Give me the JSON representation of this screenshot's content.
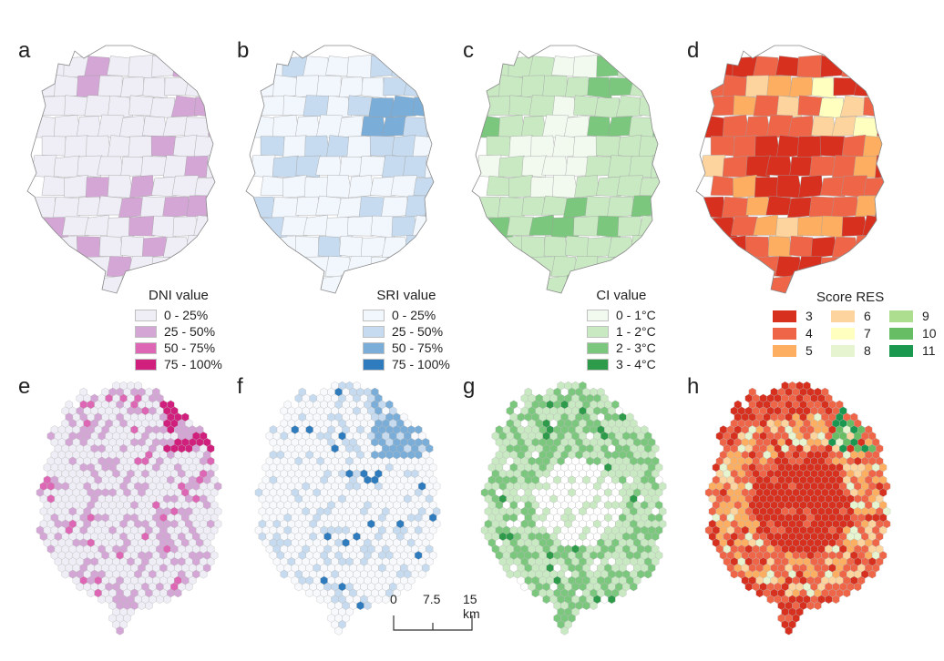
{
  "panels": {
    "a": {
      "label": "a",
      "theme": "dni"
    },
    "b": {
      "label": "b",
      "theme": "sri"
    },
    "c": {
      "label": "c",
      "theme": "ci"
    },
    "d": {
      "label": "d",
      "theme": "res"
    },
    "e": {
      "label": "e",
      "theme": "dni"
    },
    "f": {
      "label": "f",
      "theme": "sri"
    },
    "g": {
      "label": "g",
      "theme": "ci"
    },
    "h": {
      "label": "h",
      "theme": "res"
    }
  },
  "legends": {
    "dni": {
      "title": "DNI value",
      "items": [
        "0 - 25%",
        "25 - 50%",
        "50 - 75%",
        "75 - 100%"
      ],
      "colors": [
        "#efedf5",
        "#d4a6d6",
        "#dd67b5",
        "#d01f7c"
      ]
    },
    "sri": {
      "title": "SRI value",
      "items": [
        "0 - 25%",
        "25 - 50%",
        "50 - 75%",
        "75 - 100%"
      ],
      "colors": [
        "#f2f7fd",
        "#c6dbef",
        "#7aadd8",
        "#2e7bbd"
      ]
    },
    "ci": {
      "title": "CI value",
      "items": [
        "0 - 1°C",
        "1 - 2°C",
        "2 - 3°C",
        "3 - 4°C"
      ],
      "colors": [
        "#f2faf0",
        "#c9e9c3",
        "#7bc77d",
        "#2e9b4a"
      ]
    },
    "res": {
      "title": "Score RES",
      "items": [
        "3",
        "6",
        "9",
        "4",
        "7",
        "10",
        "5",
        "8",
        "11"
      ],
      "colors": [
        "#d7301f",
        "#fdd49e",
        "#addd8e",
        "#ef6548",
        "#ffffbf",
        "#66bd63",
        "#fdae61",
        "#e6f5d0",
        "#1a9850"
      ]
    }
  },
  "scale_bar": {
    "labels": [
      "0",
      "7.5",
      "15 km"
    ]
  },
  "colors": {
    "outline": "#9e9e9e",
    "hex_edge": "#b9b9b9"
  }
}
